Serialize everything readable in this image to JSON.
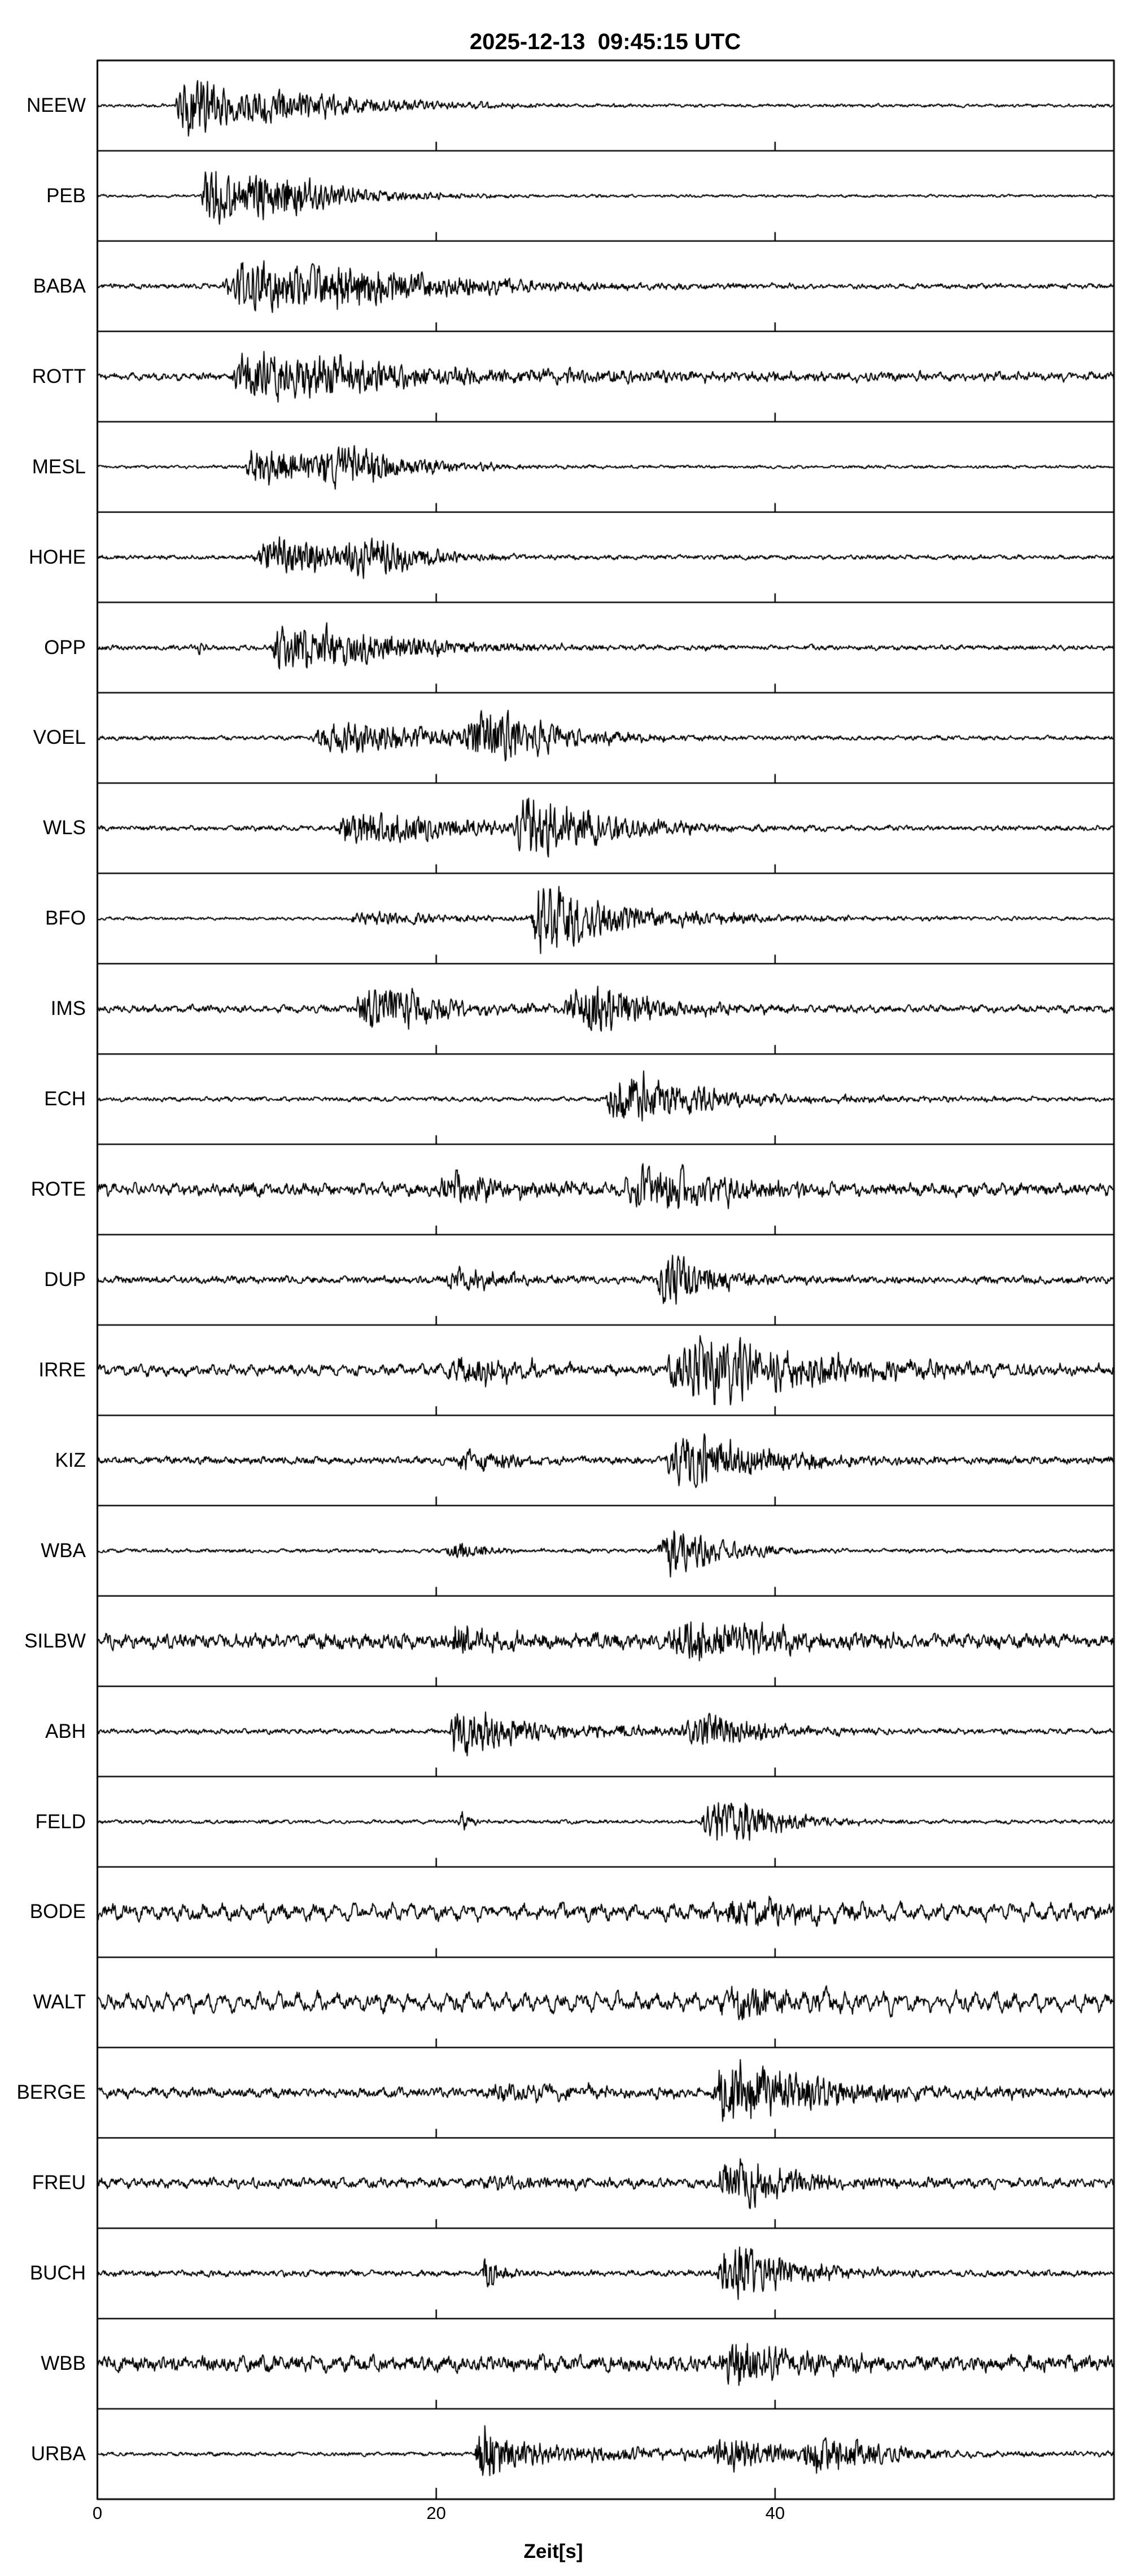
{
  "title": "2025-12-13  09:45:15 UTC",
  "xlabel": "Zeit[s]",
  "colors": {
    "ink": "#000000",
    "background": "#ffffff"
  },
  "axis": {
    "range_s": [
      0,
      60
    ],
    "ticks": [
      {
        "value": 0,
        "label": "0"
      },
      {
        "value": 20,
        "label": "20"
      },
      {
        "value": 40,
        "label": "40"
      }
    ]
  },
  "chart_data": {
    "type": "line",
    "kind": "seismogram-record-section",
    "title": "2025-12-13  09:45:15 UTC",
    "xlabel": "Zeit[s]",
    "x_range_s": [
      0,
      60
    ],
    "x_ticks": [
      0,
      20,
      40
    ],
    "y_axis": "27 station traces, normalized amplitude per row",
    "grid": false,
    "stations": [
      {
        "name": "NEEW",
        "onset_s": 4.6,
        "main_burst_s": 5.5,
        "noise": 2.5,
        "lf": 0.3,
        "bursts": [
          {
            "t0": 4.6,
            "amp": 55,
            "rise": 0.3,
            "decay": 4.0
          },
          {
            "t0": 8.0,
            "amp": 17,
            "rise": 2.0,
            "decay": 7.0
          }
        ]
      },
      {
        "name": "PEB",
        "onset_s": 6.1,
        "main_burst_s": 7.0,
        "noise": 2.2,
        "lf": 0.3,
        "bursts": [
          {
            "t0": 6.1,
            "amp": 58,
            "rise": 0.25,
            "decay": 3.0
          },
          {
            "t0": 8.8,
            "amp": 26,
            "rise": 1.0,
            "decay": 5.0
          }
        ]
      },
      {
        "name": "BABA",
        "onset_s": 7.3,
        "main_burst_s": 9.5,
        "noise": 4.0,
        "lf": 0.3,
        "bursts": [
          {
            "t0": 7.3,
            "amp": 45,
            "rise": 1.2,
            "decay": 6.0
          },
          {
            "t0": 12.0,
            "amp": 18,
            "rise": 2.0,
            "decay": 8.0
          }
        ]
      },
      {
        "name": "ROTT",
        "onset_s": 7.8,
        "main_burst_s": 9.0,
        "noise": 6.0,
        "lf": 0.35,
        "bursts": [
          {
            "t0": 7.8,
            "amp": 46,
            "rise": 1.0,
            "decay": 5.0
          },
          {
            "t0": 10.0,
            "amp": 12,
            "rise": 2.0,
            "decay": 30.0
          }
        ]
      },
      {
        "name": "MESL",
        "onset_s": 8.7,
        "main_burst_s": 9.5,
        "noise": 2.5,
        "lf": 0.3,
        "bursts": [
          {
            "t0": 8.7,
            "amp": 42,
            "rise": 0.4,
            "decay": 4.0
          },
          {
            "t0": 13.0,
            "amp": 28,
            "rise": 1.0,
            "decay": 4.0
          }
        ]
      },
      {
        "name": "HOHE",
        "onset_s": 9.2,
        "main_burst_s": 10.5,
        "noise": 3.5,
        "lf": 0.3,
        "bursts": [
          {
            "t0": 9.2,
            "amp": 38,
            "rise": 0.8,
            "decay": 4.0
          },
          {
            "t0": 14.5,
            "amp": 30,
            "rise": 0.8,
            "decay": 3.0
          }
        ]
      },
      {
        "name": "OPP",
        "onset_s": 5.9,
        "main_burst_s": 11.5,
        "noise": 4.0,
        "lf": 0.3,
        "bursts": [
          {
            "t0": 5.9,
            "amp": 16,
            "rise": 0.08,
            "decay": 0.35
          },
          {
            "t0": 10.2,
            "amp": 52,
            "rise": 0.6,
            "decay": 6.0
          }
        ]
      },
      {
        "name": "VOEL",
        "onset_s": 12.5,
        "main_burst_s": 22.0,
        "noise": 3.5,
        "lf": 0.3,
        "bursts": [
          {
            "t0": 12.5,
            "amp": 30,
            "rise": 1.5,
            "decay": 6.0
          },
          {
            "t0": 21.5,
            "amp": 40,
            "rise": 1.0,
            "decay": 4.0
          }
        ]
      },
      {
        "name": "WLS",
        "onset_s": 13.8,
        "main_burst_s": 25.0,
        "noise": 4.0,
        "lf": 0.3,
        "bursts": [
          {
            "t0": 13.8,
            "amp": 30,
            "rise": 1.0,
            "decay": 8.0
          },
          {
            "t0": 24.5,
            "amp": 48,
            "rise": 0.8,
            "decay": 4.0
          }
        ]
      },
      {
        "name": "BFO",
        "onset_s": 14.8,
        "main_burst_s": 26.0,
        "noise": 2.5,
        "lf": 0.3,
        "bursts": [
          {
            "t0": 14.8,
            "amp": 13,
            "rise": 0.5,
            "decay": 6.0
          },
          {
            "t0": 25.6,
            "amp": 62,
            "rise": 0.4,
            "decay": 2.2
          },
          {
            "t0": 26.5,
            "amp": 16,
            "rise": 2.0,
            "decay": 9.0
          }
        ]
      },
      {
        "name": "IMS",
        "onset_s": 15.2,
        "main_burst_s": 16.0,
        "noise": 6.0,
        "lf": 0.35,
        "bursts": [
          {
            "t0": 15.2,
            "amp": 45,
            "rise": 0.5,
            "decay": 4.0
          },
          {
            "t0": 27.5,
            "amp": 42,
            "rise": 0.8,
            "decay": 4.0
          }
        ]
      },
      {
        "name": "ECH",
        "onset_s": 30.0,
        "main_burst_s": 31.5,
        "noise": 3.5,
        "lf": 0.3,
        "bursts": [
          {
            "t0": 30.0,
            "amp": 55,
            "rise": 0.7,
            "decay": 2.2
          },
          {
            "t0": 31.0,
            "amp": 14,
            "rise": 2.0,
            "decay": 8.0
          }
        ]
      },
      {
        "name": "ROTE",
        "onset_s": 20.0,
        "main_burst_s": 32.0,
        "noise": 10.0,
        "lf": 0.35,
        "bursts": [
          {
            "t0": 20.0,
            "amp": 28,
            "rise": 0.8,
            "decay": 4.0
          },
          {
            "t0": 31.0,
            "amp": 42,
            "rise": 1.0,
            "decay": 5.0
          }
        ]
      },
      {
        "name": "DUP",
        "onset_s": 20.5,
        "main_burst_s": 33.5,
        "noise": 6.0,
        "lf": 0.3,
        "bursts": [
          {
            "t0": 20.5,
            "amp": 22,
            "rise": 0.5,
            "decay": 3.0
          },
          {
            "t0": 33.0,
            "amp": 48,
            "rise": 0.4,
            "decay": 2.5
          }
        ]
      },
      {
        "name": "IRRE",
        "onset_s": 20.5,
        "main_burst_s": 34.5,
        "noise": 9.0,
        "lf": 0.45,
        "bursts": [
          {
            "t0": 20.5,
            "amp": 26,
            "rise": 0.8,
            "decay": 4.0
          },
          {
            "t0": 33.5,
            "amp": 48,
            "rise": 1.0,
            "decay": 5.0
          },
          {
            "t0": 35.0,
            "amp": 18,
            "rise": 2.0,
            "decay": 12.0
          }
        ]
      },
      {
        "name": "KIZ",
        "onset_s": 21.0,
        "main_burst_s": 34.5,
        "noise": 6.0,
        "lf": 0.3,
        "bursts": [
          {
            "t0": 21.0,
            "amp": 20,
            "rise": 0.5,
            "decay": 3.0
          },
          {
            "t0": 33.5,
            "amp": 48,
            "rise": 1.0,
            "decay": 4.5
          }
        ]
      },
      {
        "name": "WBA",
        "onset_s": 20.5,
        "main_burst_s": 33.5,
        "noise": 3.0,
        "lf": 0.3,
        "bursts": [
          {
            "t0": 20.5,
            "amp": 15,
            "rise": 0.5,
            "decay": 2.0
          },
          {
            "t0": 33.0,
            "amp": 45,
            "rise": 0.6,
            "decay": 3.0
          }
        ]
      },
      {
        "name": "SILBW",
        "onset_s": 20.5,
        "main_burst_s": 34.5,
        "noise": 12.0,
        "lf": 0.3,
        "bursts": [
          {
            "t0": 20.5,
            "amp": 28,
            "rise": 0.5,
            "decay": 3.0
          },
          {
            "t0": 33.5,
            "amp": 38,
            "rise": 1.0,
            "decay": 5.0
          }
        ]
      },
      {
        "name": "ABH",
        "onset_s": 20.8,
        "main_burst_s": 21.3,
        "noise": 4.0,
        "lf": 0.3,
        "bursts": [
          {
            "t0": 20.8,
            "amp": 55,
            "rise": 0.25,
            "decay": 1.2
          },
          {
            "t0": 21.5,
            "amp": 18,
            "rise": 1.0,
            "decay": 10.0
          },
          {
            "t0": 34.5,
            "amp": 28,
            "rise": 1.0,
            "decay": 3.0
          }
        ]
      },
      {
        "name": "FELD",
        "onset_s": 21.3,
        "main_burst_s": 36.5,
        "noise": 3.0,
        "lf": 0.3,
        "bursts": [
          {
            "t0": 21.3,
            "amp": 18,
            "rise": 0.15,
            "decay": 0.6
          },
          {
            "t0": 35.5,
            "amp": 45,
            "rise": 1.2,
            "decay": 3.0
          }
        ]
      },
      {
        "name": "BODE",
        "onset_s": 36.5,
        "main_burst_s": 37.5,
        "noise": 14.0,
        "lf": 0.5,
        "bursts": [
          {
            "t0": 36.5,
            "amp": 26,
            "rise": 1.0,
            "decay": 4.0
          }
        ]
      },
      {
        "name": "WALT",
        "onset_s": 36.5,
        "main_burst_s": 38.0,
        "noise": 16.0,
        "lf": 0.55,
        "bursts": [
          {
            "t0": 36.5,
            "amp": 26,
            "rise": 1.0,
            "decay": 5.0
          }
        ]
      },
      {
        "name": "BERGE",
        "onset_s": 22.5,
        "main_burst_s": 37.0,
        "noise": 8.0,
        "lf": 0.35,
        "bursts": [
          {
            "t0": 22.5,
            "amp": 15,
            "rise": 1.0,
            "decay": 6.0
          },
          {
            "t0": 36.3,
            "amp": 60,
            "rise": 0.4,
            "decay": 3.0
          },
          {
            "t0": 37.0,
            "amp": 20,
            "rise": 1.0,
            "decay": 10.0
          }
        ]
      },
      {
        "name": "FREU",
        "onset_s": 22.5,
        "main_burst_s": 37.3,
        "noise": 8.0,
        "lf": 0.35,
        "bursts": [
          {
            "t0": 22.5,
            "amp": 10,
            "rise": 1.0,
            "decay": 5.0
          },
          {
            "t0": 36.5,
            "amp": 42,
            "rise": 0.8,
            "decay": 3.5
          }
        ]
      },
      {
        "name": "BUCH",
        "onset_s": 22.7,
        "main_burst_s": 37.3,
        "noise": 5.0,
        "lf": 0.3,
        "bursts": [
          {
            "t0": 22.7,
            "amp": 32,
            "rise": 0.2,
            "decay": 1.0
          },
          {
            "t0": 36.5,
            "amp": 52,
            "rise": 0.8,
            "decay": 3.5
          }
        ]
      },
      {
        "name": "WBB",
        "onset_s": 36.5,
        "main_burst_s": 37.5,
        "noise": 13.0,
        "lf": 0.35,
        "bursts": [
          {
            "t0": 36.5,
            "amp": 40,
            "rise": 0.8,
            "decay": 4.0
          }
        ]
      },
      {
        "name": "URBA",
        "onset_s": 22.3,
        "main_burst_s": 22.8,
        "noise": 3.0,
        "lf": 0.3,
        "bursts": [
          {
            "t0": 22.3,
            "amp": 70,
            "rise": 0.2,
            "decay": 1.2
          },
          {
            "t0": 23.0,
            "amp": 14,
            "rise": 2.0,
            "decay": 15.0
          },
          {
            "t0": 36.0,
            "amp": 22,
            "rise": 1.0,
            "decay": 3.0
          },
          {
            "t0": 41.5,
            "amp": 28,
            "rise": 1.0,
            "decay": 3.0
          }
        ]
      }
    ]
  }
}
